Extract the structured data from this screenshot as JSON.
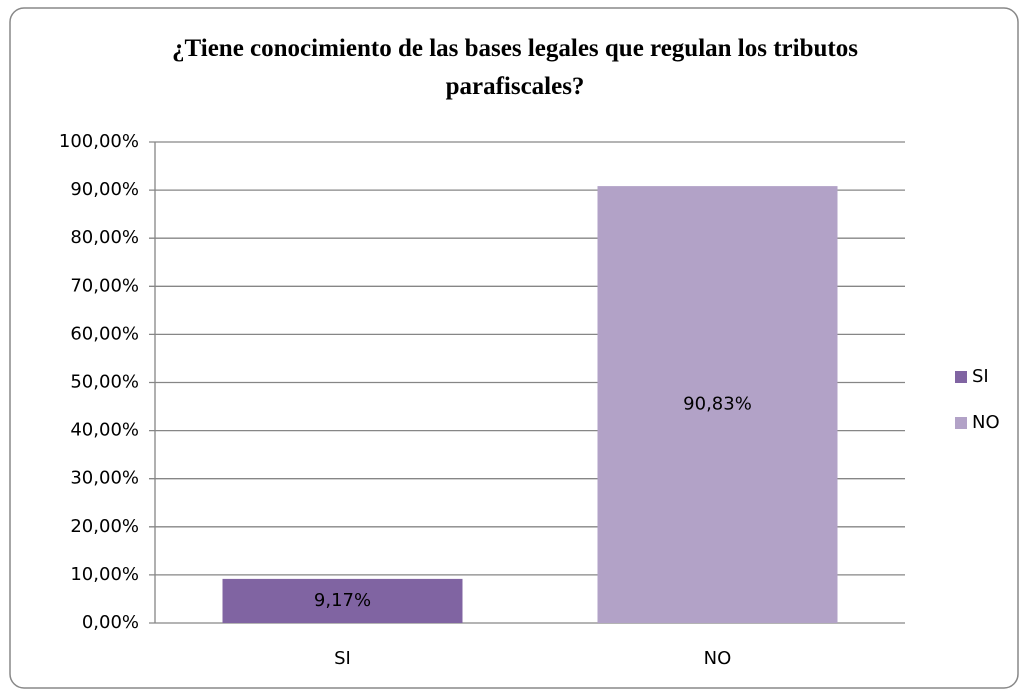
{
  "chart_data": {
    "type": "bar",
    "title": "¿Tiene conocimiento de las bases legales que regulan los tributos parafiscales?",
    "categories": [
      "SI",
      "NO"
    ],
    "values": [
      9.17,
      90.83
    ],
    "value_labels": [
      "9,17%",
      "90,83%"
    ],
    "colors": [
      "#8064a2",
      "#b2a2c7"
    ],
    "ylim": [
      0,
      100
    ],
    "yticks": [
      {
        "value": 0,
        "label": "0,00%"
      },
      {
        "value": 10,
        "label": "10,00%"
      },
      {
        "value": 20,
        "label": "20,00%"
      },
      {
        "value": 30,
        "label": "30,00%"
      },
      {
        "value": 40,
        "label": "40,00%"
      },
      {
        "value": 50,
        "label": "50,00%"
      },
      {
        "value": 60,
        "label": "60,00%"
      },
      {
        "value": 70,
        "label": "70,00%"
      },
      {
        "value": 80,
        "label": "80,00%"
      },
      {
        "value": 90,
        "label": "90,00%"
      },
      {
        "value": 100,
        "label": "100,00%"
      }
    ],
    "grid": true,
    "legend": "right"
  }
}
